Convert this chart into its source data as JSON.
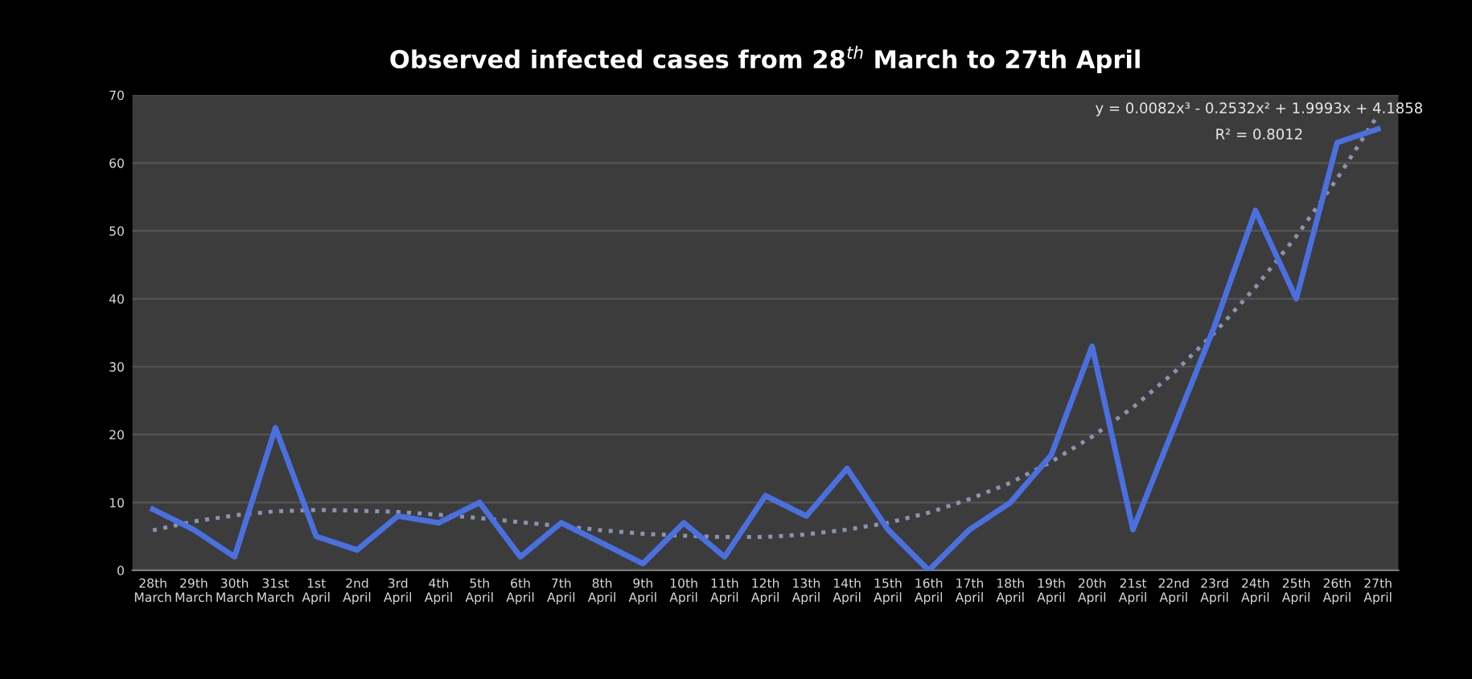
{
  "chart_data": {
    "type": "line",
    "title": "Observed infected cases from 28$^{th}$ March to 27th April",
    "categories": [
      "28th\nMarch",
      "29th\nMarch",
      "30th\nMarch",
      "31st\nMarch",
      "1st\nApril",
      "2nd\nApril",
      "3rd\nApril",
      "4th\nApril",
      "5th\nApril",
      "6th\nApril",
      "7th\nApril",
      "8th\nApril",
      "9th\nApril",
      "10th\nApril",
      "11th\nApril",
      "12th\nApril",
      "13th\nApril",
      "14th\nApril",
      "15th\nApril",
      "16th\nApril",
      "17th\nApril",
      "18th\nApril",
      "19th\nApril",
      "20th\nApril",
      "21st\nApril",
      "22nd\nApril",
      "23rd\nApril",
      "24th\nApril",
      "25th\nApril",
      "26th\nApril",
      "27th\nApril"
    ],
    "series": [
      {
        "color": "#4a70e0",
        "values": [
          9,
          6,
          2,
          21,
          5,
          3,
          8,
          7,
          10,
          2,
          7,
          4,
          1,
          7,
          2,
          11,
          8,
          15,
          6,
          0,
          6,
          10,
          17,
          33,
          6,
          21,
          36,
          53,
          40,
          63,
          65
        ]
      },
      {
        "color": "#8a93b0",
        "line_style": "dotted",
        "values": [
          5.9,
          7.2,
          8.1,
          8.7,
          8.9,
          8.8,
          8.6,
          8.2,
          7.7,
          7.1,
          6.5,
          5.9,
          5.4,
          5.1,
          4.9,
          4.9,
          5.3,
          6.0,
          7.0,
          8.5,
          10.5,
          12.9,
          16.0,
          19.7,
          24.0,
          29.1,
          35.0,
          41.7,
          49.2,
          57.7,
          67.1
        ]
      }
    ],
    "ylim": [
      0,
      70
    ],
    "yticks": [
      0,
      10,
      20,
      30,
      40,
      50,
      60,
      70
    ],
    "grid": "y",
    "annotations": [
      "y = 0.0082x³ - 0.2532x² + 1.9993x + 4.1858",
      "R² = 0.8012"
    ]
  }
}
